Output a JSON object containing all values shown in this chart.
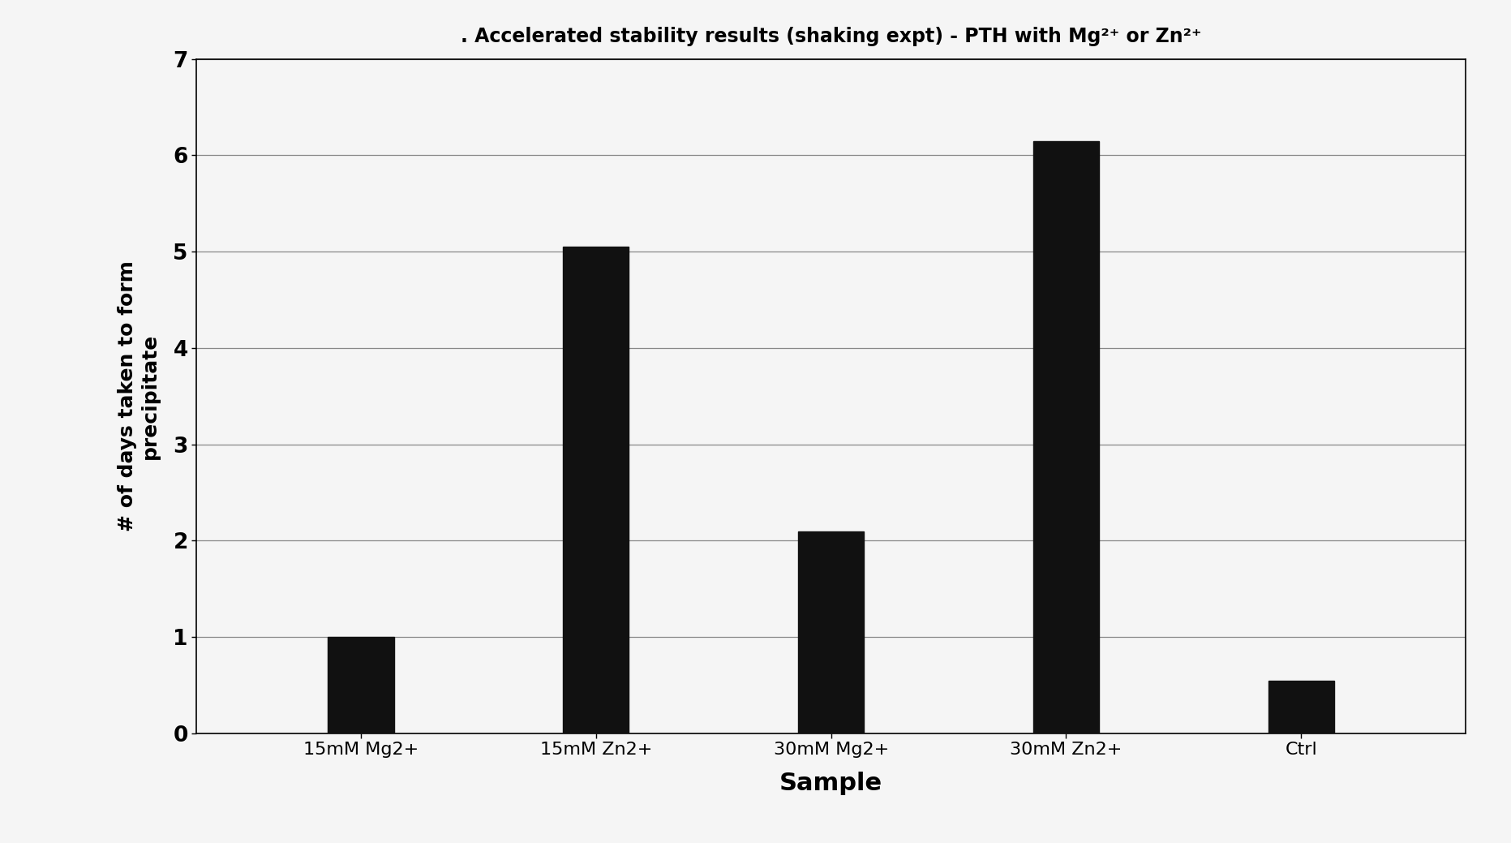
{
  "title": ". Accelerated stability results (shaking expt) - PTH with Mg²⁺ or Zn²⁺",
  "categories": [
    "15mM Mg2+",
    "15mM Zn2+",
    "30mM Mg2+",
    "30mM Zn2+",
    "Ctrl"
  ],
  "values": [
    1.0,
    5.05,
    2.1,
    6.15,
    0.55
  ],
  "bar_color": "#111111",
  "xlabel": "Sample",
  "ylabel": "# of days taken to form\nprecipitate",
  "ylim": [
    0,
    7
  ],
  "yticks": [
    0,
    1,
    2,
    3,
    4,
    5,
    6,
    7
  ],
  "title_fontsize": 17,
  "axis_label_fontsize": 18,
  "tick_fontsize": 16,
  "xlabel_fontsize": 22,
  "background_color": "#f5f5f5",
  "bar_width": 0.28,
  "xlim_left": -0.7,
  "xlim_right": 4.7
}
